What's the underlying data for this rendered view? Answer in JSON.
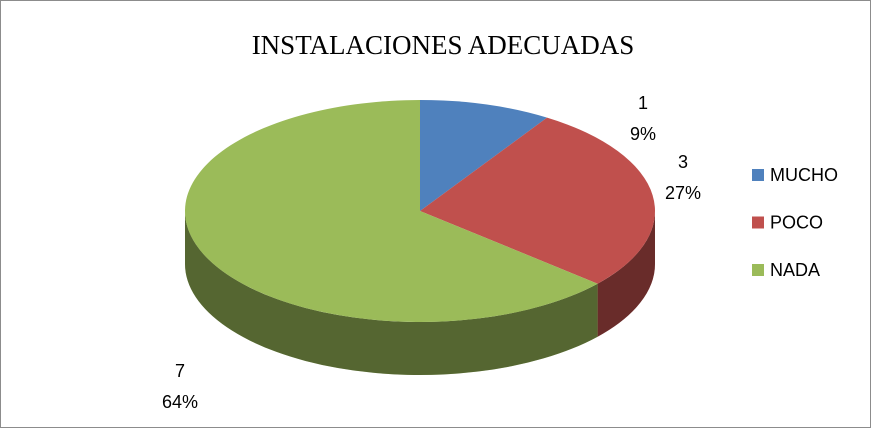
{
  "chart_data": {
    "type": "pie",
    "title": "INSTALACIONES ADECUADAS",
    "categories": [
      "MUCHO",
      "POCO",
      "NADA"
    ],
    "values": [
      1,
      3,
      7
    ],
    "percent_labels": [
      "9%",
      "27%",
      "64%"
    ],
    "colors": [
      "#4f81bd",
      "#c0504d",
      "#9bbb59"
    ],
    "legend": "right"
  }
}
